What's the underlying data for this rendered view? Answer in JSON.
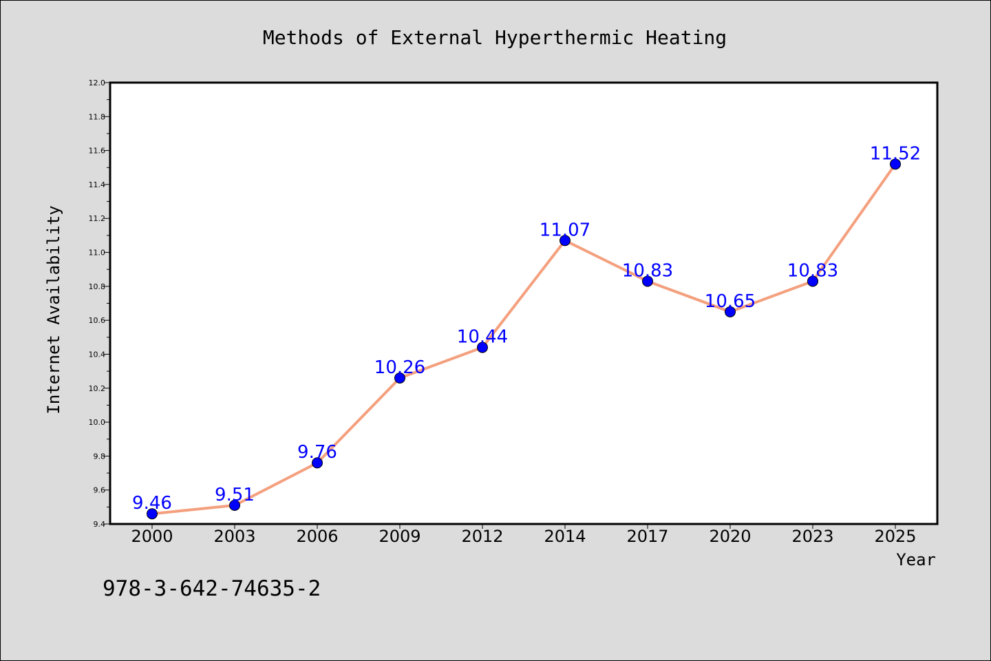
{
  "chart_data": {
    "type": "line",
    "title": "Methods of External Hyperthermic Heating",
    "xlabel": "Year",
    "ylabel": "Internet Availability",
    "categories": [
      "2000",
      "2003",
      "2006",
      "2009",
      "2012",
      "2014",
      "2017",
      "2020",
      "2023",
      "2025"
    ],
    "series": [
      {
        "values": [
          9.46,
          9.51,
          9.76,
          10.26,
          10.44,
          11.07,
          10.83,
          10.65,
          10.83,
          11.52
        ],
        "line_color": "#f4a07e",
        "marker_color": "#0000ff"
      }
    ],
    "data_labels": [
      "9.46",
      "9.51",
      "9.76",
      "10.26",
      "10.44",
      "11.07",
      "10.83",
      "10.65",
      "10.83",
      "11.52"
    ],
    "data_label_color": "#0000ff",
    "ylim": [
      9.4,
      12.0
    ],
    "y_ticks": [
      "9.4",
      "9.6",
      "9.8",
      "10.0",
      "10.2",
      "10.4",
      "10.6",
      "10.8",
      "11.0",
      "11.2",
      "11.4",
      "11.6",
      "11.8",
      "12.0"
    ],
    "grid": false,
    "legend": "none"
  },
  "footer": {
    "text": "978-3-642-74635-2"
  },
  "colors": {
    "background": "#dcdcdc",
    "plot_background": "#ffffff"
  }
}
